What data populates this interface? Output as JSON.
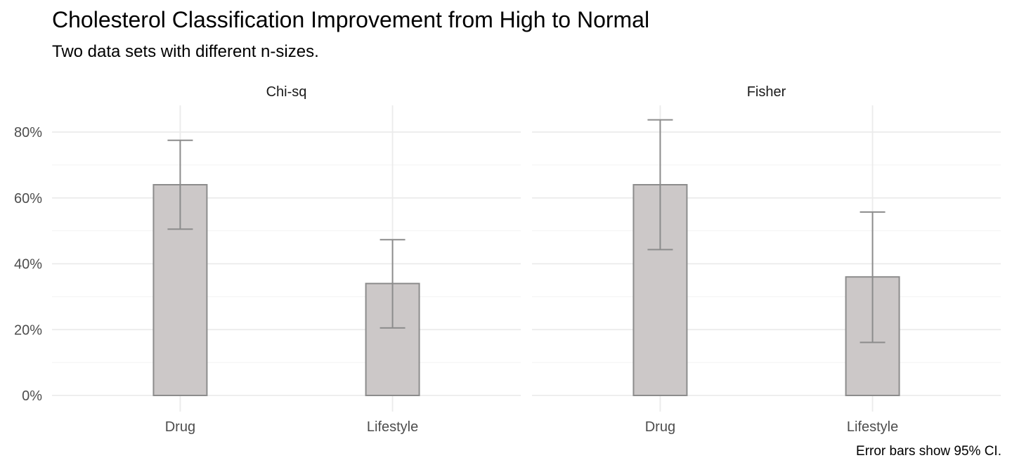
{
  "title": "Cholesterol Classification Improvement from High to Normal",
  "subtitle": "Two data sets with different n-sizes.",
  "caption": "Error bars show 95% CI.",
  "chart_data": {
    "type": "bar",
    "title": "Cholesterol Classification Improvement from High to Normal",
    "subtitle": "Two data sets with different n-sizes.",
    "xlabel": "",
    "ylabel": "",
    "ylim": [
      0,
      0.88
    ],
    "yticks": [
      0,
      0.2,
      0.4,
      0.6,
      0.8
    ],
    "ytick_labels": [
      "0%",
      "20%",
      "40%",
      "60%",
      "80%"
    ],
    "grid": true,
    "categories": [
      "Drug",
      "Lifestyle"
    ],
    "panels": [
      {
        "name": "Chi-sq",
        "values": [
          0.64,
          0.34
        ],
        "ci_lower": [
          0.505,
          0.205
        ],
        "ci_upper": [
          0.775,
          0.473
        ]
      },
      {
        "name": "Fisher",
        "values": [
          0.64,
          0.36
        ],
        "ci_lower": [
          0.443,
          0.161
        ],
        "ci_upper": [
          0.837,
          0.557
        ]
      }
    ],
    "colors": {
      "bar_fill": "#ccc8c8",
      "bar_stroke": "#8c8c8c",
      "errorbar": "#8c8c8c"
    }
  }
}
